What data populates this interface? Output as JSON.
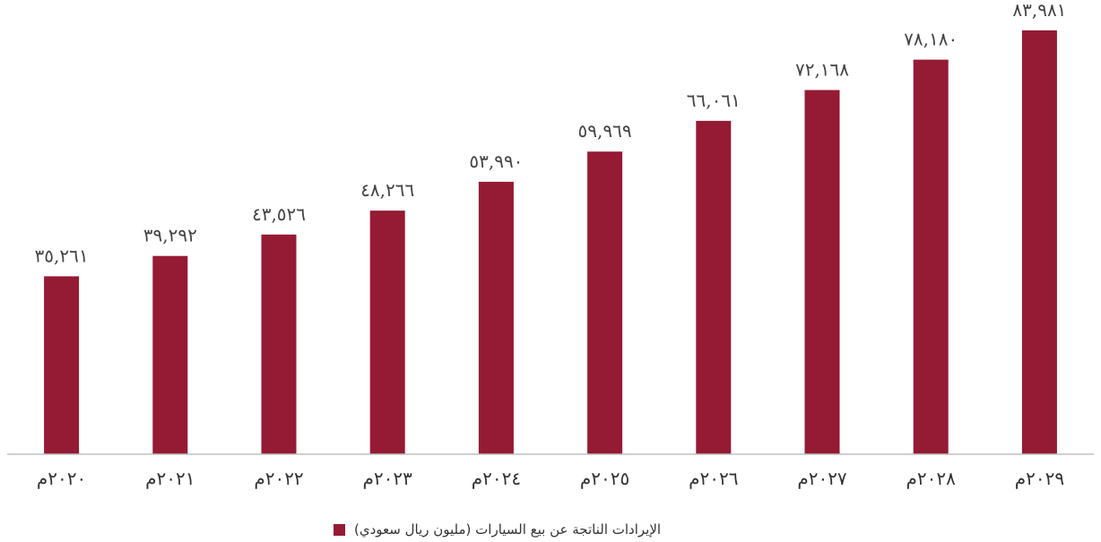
{
  "colors": {
    "bar": "#951a33",
    "axis": "#bfbfbf",
    "text": "#333333"
  },
  "chart_data": {
    "type": "bar",
    "title": "",
    "xlabel": "",
    "ylabel": "",
    "categories": [
      "٢٠٢٠م",
      "٢٠٢١م",
      "٢٠٢٢م",
      "٢٠٢٣م",
      "٢٠٢٤م",
      "٢٠٢٥م",
      "٢٠٢٦م",
      "٢٠٢٧م",
      "٢٠٢٨م",
      "٢٠٢٩م"
    ],
    "series": [
      {
        "name": "الإيرادات الناتجة عن بيع السيارات (مليون ريال سعودي)",
        "values": [
          35261,
          39292,
          43526,
          48266,
          53990,
          59969,
          66061,
          72168,
          78180,
          83981
        ],
        "labels": [
          "٣٥,٢٦١",
          "٣٩,٢٩٢",
          "٤٣,٥٢٦",
          "٤٨,٢٦٦",
          "٥٣,٩٩٠",
          "٥٩,٩٦٩",
          "٦٦,٠٦١",
          "٧٢,١٦٨",
          "٧٨,١٨٠",
          "٨٣,٩٨١"
        ]
      }
    ],
    "ylim": [
      0,
      90000
    ],
    "grid": false,
    "legend_position": "bottom"
  },
  "legend": {
    "label": "الإيرادات الناتجة عن بيع السيارات (مليون ريال سعودي)"
  }
}
